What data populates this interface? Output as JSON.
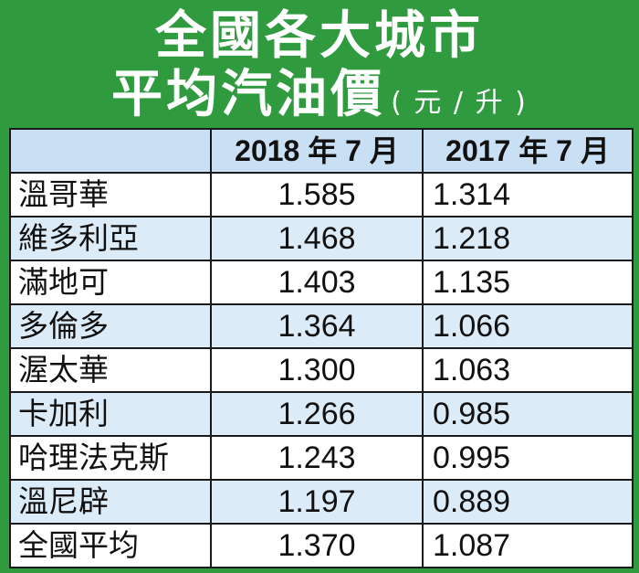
{
  "title": {
    "line1": "全國各大城市",
    "line2": "平均汽油價",
    "unit": "( 元 / 升 )"
  },
  "colors": {
    "background": "#2f9a3e",
    "header_row": "#c9e0f4",
    "alt_row": "#dcebf8",
    "text": "#111111"
  },
  "table": {
    "headers": [
      "",
      "2018 年 7 月",
      "2017 年 7 月"
    ],
    "rows": [
      {
        "city": "溫哥華",
        "v2018": "1.585",
        "v2017": "1.314"
      },
      {
        "city": "維多利亞",
        "v2018": "1.468",
        "v2017": "1.218"
      },
      {
        "city": "滿地可",
        "v2018": "1.403",
        "v2017": "1.135"
      },
      {
        "city": "多倫多",
        "v2018": "1.364",
        "v2017": "1.066"
      },
      {
        "city": "渥太華",
        "v2018": "1.300",
        "v2017": "1.063"
      },
      {
        "city": "卡加利",
        "v2018": "1.266",
        "v2017": "0.985"
      },
      {
        "city": "哈理法克斯",
        "v2018": "1.243",
        "v2017": "0.995"
      },
      {
        "city": "溫尼辟",
        "v2018": "1.197",
        "v2017": "0.889"
      },
      {
        "city": "全國平均",
        "v2018": "1.370",
        "v2017": "1.087"
      }
    ]
  },
  "chart_data": {
    "type": "table",
    "title": "全國各大城市平均汽油價",
    "subtitle": "( 元 / 升 )",
    "columns": [
      "2018 年 7 月",
      "2017 年 7 月"
    ],
    "categories": [
      "溫哥華",
      "維多利亞",
      "滿地可",
      "多倫多",
      "渥太華",
      "卡加利",
      "哈理法克斯",
      "溫尼辟",
      "全國平均"
    ],
    "series": [
      {
        "name": "2018 年 7 月",
        "values": [
          1.585,
          1.468,
          1.403,
          1.364,
          1.3,
          1.266,
          1.243,
          1.197,
          1.37
        ]
      },
      {
        "name": "2017 年 7 月",
        "values": [
          1.314,
          1.218,
          1.135,
          1.066,
          1.063,
          0.985,
          0.995,
          0.889,
          1.087
        ]
      }
    ]
  }
}
